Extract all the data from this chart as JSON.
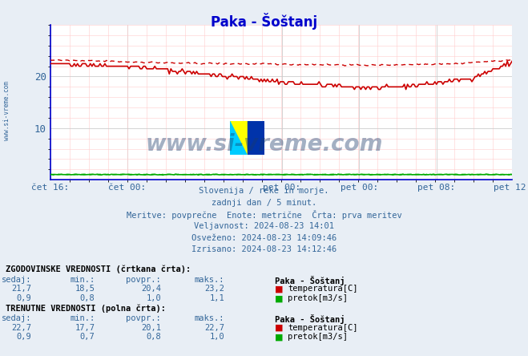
{
  "title": "Paka - Šoštanj",
  "title_color": "#0000cc",
  "bg_color": "#e8eef5",
  "plot_bg_color": "#ffffff",
  "ylim": [
    0,
    30
  ],
  "ytick_vals": [
    10,
    20
  ],
  "xtick_positions": [
    0,
    48,
    144,
    192,
    240,
    287
  ],
  "xtick_labels": [
    "čet 16:",
    "čet 00:",
    "pet 00:",
    "pet 00:",
    "pet 08:",
    "pet 12:"
  ],
  "total_points": 288,
  "watermark_text": "www.si-vreme.com",
  "watermark_color": "#1a3a6b",
  "info_lines": [
    "Slovenija / reke in morje.",
    "zadnji dan / 5 minut.",
    "Meritve: povprečne  Enote: metrične  Črta: prva meritev",
    "Veljavnost: 2024-08-23 14:01",
    "Osveženo: 2024-08-23 14:09:46",
    "Izrisano: 2024-08-23 14:12:46"
  ],
  "info_color": "#336699",
  "hist_header": "ZGODOVINSKE VREDNOSTI (črtkana črta):",
  "hist_temp": [
    "21,7",
    "18,5",
    "20,4",
    "23,2"
  ],
  "hist_pretok": [
    "0,9",
    "0,8",
    "1,0",
    "1,1"
  ],
  "curr_header": "TRENUTNE VREDNOSTI (polna črta):",
  "curr_temp": [
    "22,7",
    "17,7",
    "20,1",
    "22,7"
  ],
  "curr_pretok": [
    "0,9",
    "0,7",
    "0,8",
    "1,0"
  ],
  "station_name": "Paka - Šoštanj",
  "temp_color": "#cc0000",
  "pretok_color": "#00aa00",
  "tick_label_color": "#336699",
  "col_names": [
    "sedaj:",
    "min.:",
    "povpr.:",
    "maks.:"
  ]
}
